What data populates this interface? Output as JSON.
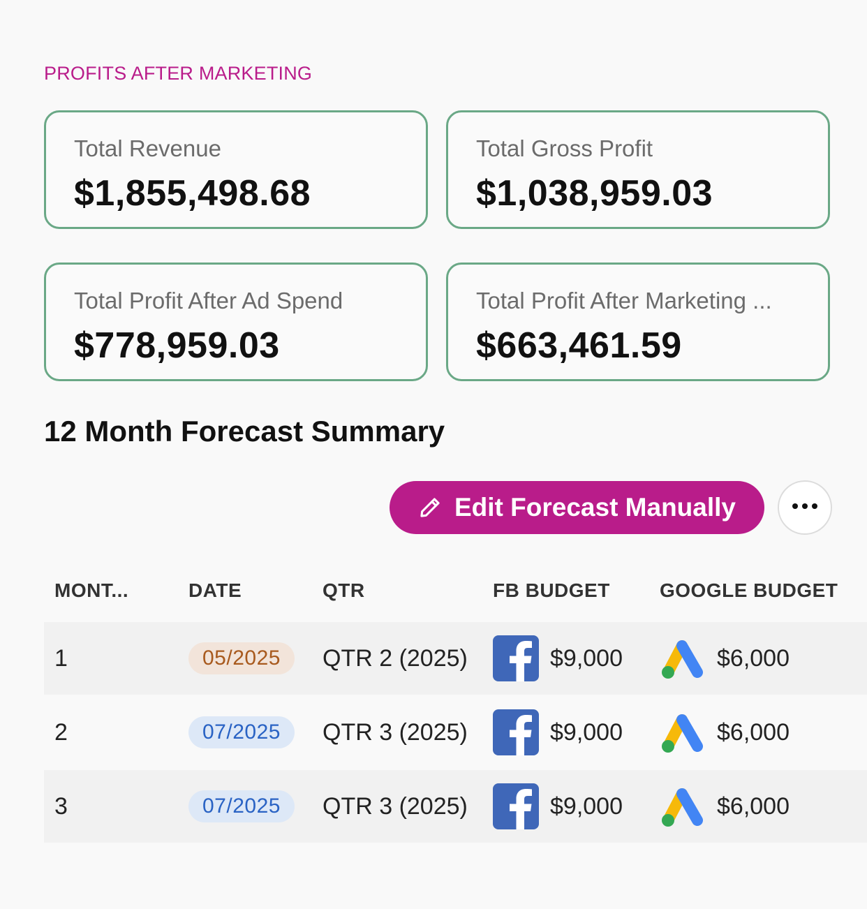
{
  "section_label": "PROFITS AFTER MARKETING",
  "metrics": [
    {
      "label": "Total Revenue",
      "value": "$1,855,498.68"
    },
    {
      "label": "Total Gross Profit",
      "value": "$1,038,959.03"
    },
    {
      "label": "Total Profit After Ad Spend",
      "value": "$778,959.03"
    },
    {
      "label": "Total Profit After Marketing ...",
      "value": "$663,461.59"
    }
  ],
  "forecast": {
    "title": "12 Month Forecast Summary",
    "edit_button_label": "Edit Forecast Manually",
    "more_icon": "ellipsis-icon"
  },
  "table": {
    "headers": {
      "month": "MONT...",
      "date": "DATE",
      "qtr": "QTR",
      "fb_budget": "FB BUDGET",
      "google_budget": "GOOGLE BUDGET"
    },
    "rows": [
      {
        "month": "1",
        "date": "05/2025",
        "date_color": "orange",
        "qtr": "QTR 2 (2025)",
        "fb_budget": "$9,000",
        "google_budget": "$6,000"
      },
      {
        "month": "2",
        "date": "07/2025",
        "date_color": "blue",
        "qtr": "QTR 3 (2025)",
        "fb_budget": "$9,000",
        "google_budget": "$6,000"
      },
      {
        "month": "3",
        "date": "07/2025",
        "date_color": "blue",
        "qtr": "QTR 3 (2025)",
        "fb_budget": "$9,000",
        "google_budget": "$6,000"
      }
    ]
  },
  "colors": {
    "accent": "#b91c8a",
    "card_border": "#6aa886",
    "facebook": "#3f67b8"
  }
}
